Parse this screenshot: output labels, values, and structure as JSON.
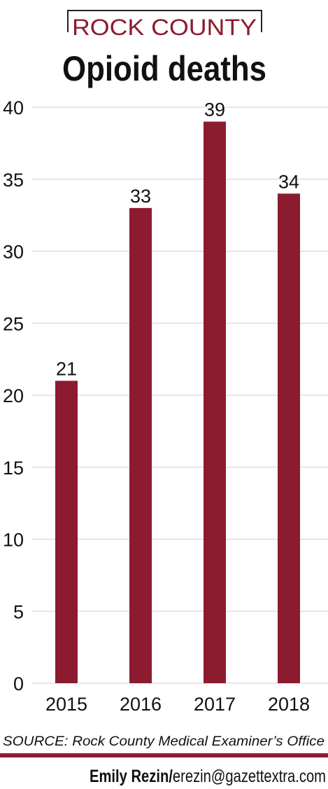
{
  "chart_data": {
    "type": "bar",
    "subtitle": "ROCK COUNTY",
    "title": "Opioid deaths",
    "categories": [
      "2015",
      "2016",
      "2017",
      "2018"
    ],
    "values": [
      21,
      33,
      39,
      34
    ],
    "color": "#8c1b2f",
    "ylim": [
      0,
      40
    ],
    "yticks": [
      0,
      5,
      10,
      15,
      20,
      25,
      30,
      35,
      40
    ],
    "grid": true,
    "source": "SOURCE: Rock County Medical Examiner’s Office",
    "credit_name": "Emily Rezin/",
    "credit_email": "erezin@gazettextra.com"
  }
}
